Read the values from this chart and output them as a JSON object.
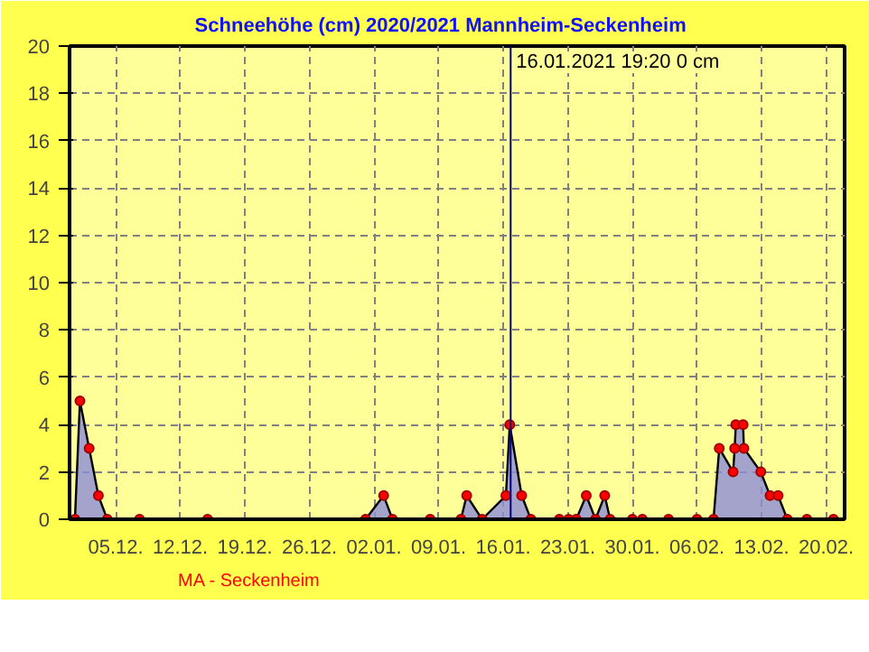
{
  "chart_data": {
    "type": "area",
    "title": "Schneehöhe (cm)  2020/2021      Mannheim-Seckenheim",
    "x": [
      "2020-11-30T14:00",
      "2020-12-01T03:00",
      "2020-12-02T03:00",
      "2020-12-03T03:00",
      "2020-12-04T02:00",
      "2020-12-07T14:00",
      "2020-12-14T23:00",
      "2021-01-01T02:00",
      "2021-01-03T01:00",
      "2021-01-04T00:00",
      "2021-01-08T02:00",
      "2021-01-11T10:00",
      "2021-01-12T01:00",
      "2021-01-13T17:00",
      "2021-01-16T07:00",
      "2021-01-16T17:00",
      "2021-01-18T00:00",
      "2021-01-19T00:00",
      "2021-01-22T02:00",
      "2021-01-23T02:00",
      "2021-01-23T22:00",
      "2021-01-25T00:00",
      "2021-01-26T00:00",
      "2021-01-27T00:00",
      "2021-01-27T14:00",
      "2021-01-30T00:00",
      "2021-01-31T02:00",
      "2021-02-02T22:00",
      "2021-02-06T00:00",
      "2021-02-07T19:00",
      "2021-02-08T10:00",
      "2021-02-09T22:00",
      "2021-02-10T02:00",
      "2021-02-10T05:00",
      "2021-02-11T00:00",
      "2021-02-11T02:00",
      "2021-02-12T22:00",
      "2021-02-13T22:00",
      "2021-02-14T19:00",
      "2021-02-15T19:00",
      "2021-02-17T22:00",
      "2021-02-20T19:00"
    ],
    "series": [
      {
        "color": "#8c8cd8",
        "values": [
          0,
          5,
          3,
          1,
          0,
          0,
          0,
          0,
          1,
          0,
          0,
          0,
          1,
          0,
          1,
          4,
          1,
          0,
          0,
          0,
          0,
          1,
          0,
          1,
          0,
          0,
          0,
          0,
          0,
          0,
          3,
          2,
          3,
          4,
          4,
          3,
          2,
          1,
          1,
          0,
          0,
          0
        ]
      }
    ],
    "xlim": [
      "2020-11-30",
      "2021-02-22"
    ],
    "xticks": [
      {
        "value": "2020-12-05",
        "label": "05.12."
      },
      {
        "value": "2020-12-12",
        "label": "12.12."
      },
      {
        "value": "2020-12-19",
        "label": "19.12."
      },
      {
        "value": "2020-12-26",
        "label": "26.12."
      },
      {
        "value": "2021-01-02",
        "label": "02.01."
      },
      {
        "value": "2021-01-09",
        "label": "09.01."
      },
      {
        "value": "2021-01-16",
        "label": "16.01."
      },
      {
        "value": "2021-01-23",
        "label": "23.01."
      },
      {
        "value": "2021-01-30",
        "label": "30.01."
      },
      {
        "value": "2021-02-06",
        "label": "06.02."
      },
      {
        "value": "2021-02-13",
        "label": "13.02."
      },
      {
        "value": "2021-02-20",
        "label": "20.02."
      }
    ],
    "ylim": [
      0,
      20
    ],
    "yticks": [
      0,
      2,
      4,
      6,
      8,
      10,
      12,
      14,
      16,
      18,
      20
    ],
    "grid": true,
    "marker": "circle",
    "ref_lines": [
      {
        "axis": "x",
        "value": "2021-01-16T19:20",
        "label": "16.01.2021  19:20   0 cm",
        "color": "#000080"
      }
    ],
    "annotations": [
      "MA - Seckenheim"
    ]
  }
}
